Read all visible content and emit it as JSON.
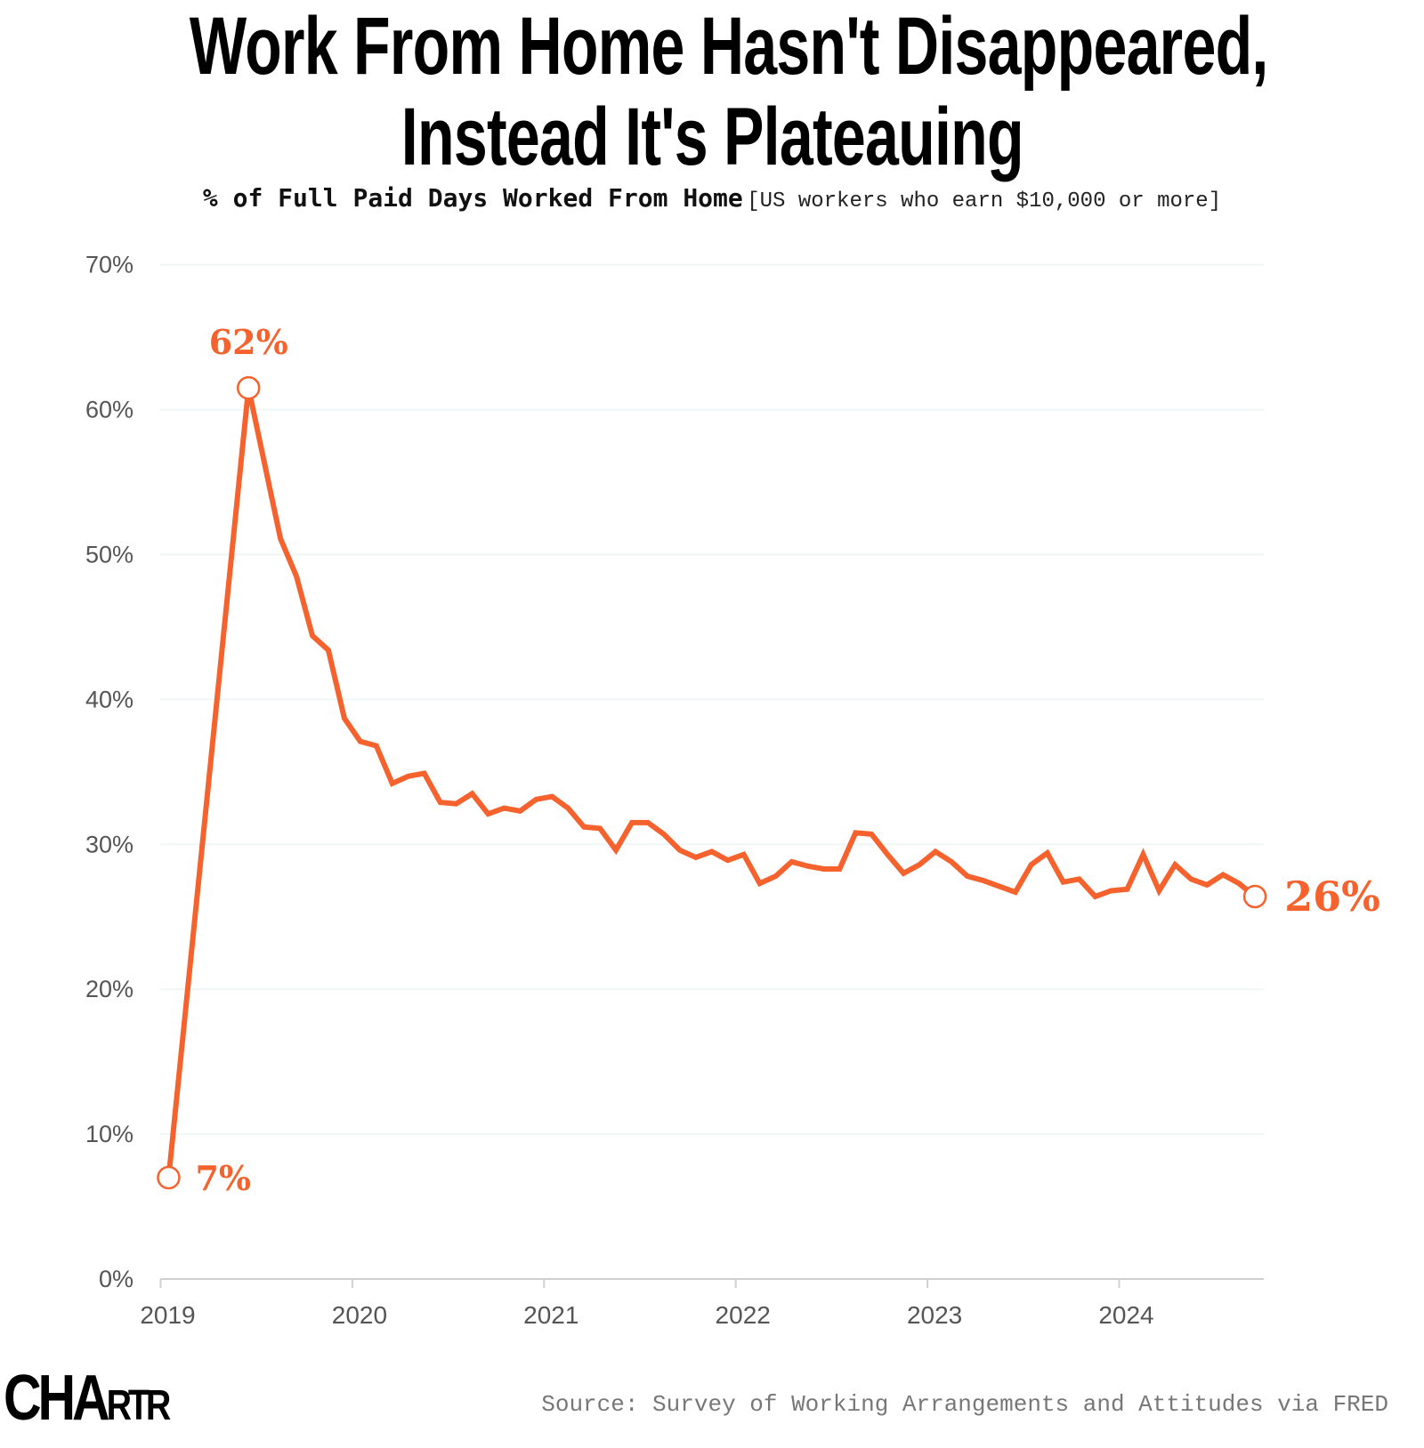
{
  "title_line1": "Work From Home Hasn't Disappeared,",
  "title_line2": "Instead It's Plateauing",
  "subtitle_main": "% of Full Paid Days Worked From Home",
  "subtitle_note": "[US workers who earn $10,000 or more]",
  "source": "Source: Survey of Working Arrangements and Attitudes via FRED",
  "logo_text": "CHARTR",
  "colors": {
    "line": "#f5622d",
    "grid": "#eef7f6",
    "axis": "#d0d0d0",
    "tick_label": "#555555"
  },
  "chart_data": {
    "type": "line",
    "title": "% of Full Paid Days Worked From Home",
    "xlabel": "",
    "ylabel": "",
    "ylim": [
      0,
      70
    ],
    "xlim": [
      "2019-01",
      "2024-09"
    ],
    "grid": true,
    "y_ticks": [
      "0%",
      "10%",
      "20%",
      "30%",
      "40%",
      "50%",
      "60%",
      "70%"
    ],
    "y_tick_values": [
      0,
      10,
      20,
      30,
      40,
      50,
      60,
      70
    ],
    "x_ticks": [
      "2019",
      "2020",
      "2021",
      "2022",
      "2023",
      "2024"
    ],
    "x": [
      "2019-01",
      "2019-06",
      "2019-08",
      "2019-09",
      "2019-10",
      "2019-11",
      "2019-12",
      "2020-01",
      "2020-02",
      "2020-03",
      "2020-04",
      "2020-05",
      "2020-06",
      "2020-07",
      "2020-08",
      "2020-09",
      "2020-10",
      "2020-11",
      "2020-12",
      "2021-01",
      "2021-02",
      "2021-03",
      "2021-04",
      "2021-05",
      "2021-06",
      "2021-07",
      "2021-08",
      "2021-09",
      "2021-10",
      "2021-11",
      "2021-12",
      "2022-01",
      "2022-02",
      "2022-03",
      "2022-04",
      "2022-05",
      "2022-06",
      "2022-07",
      "2022-08",
      "2022-09",
      "2022-10",
      "2022-11",
      "2022-12",
      "2023-01",
      "2023-02",
      "2023-03",
      "2023-04",
      "2023-05",
      "2023-06",
      "2023-07",
      "2023-08",
      "2023-09",
      "2023-10",
      "2023-11",
      "2023-12",
      "2024-01",
      "2024-02",
      "2024-03",
      "2024-04",
      "2024-05",
      "2024-06",
      "2024-07",
      "2024-08",
      "2024-09"
    ],
    "values": [
      7.0,
      61.5,
      51.1,
      48.5,
      44.4,
      43.4,
      38.7,
      37.1,
      36.8,
      34.2,
      34.7,
      34.9,
      32.9,
      32.8,
      33.5,
      32.1,
      32.5,
      32.3,
      33.1,
      33.3,
      32.5,
      31.2,
      31.1,
      29.6,
      31.5,
      31.5,
      30.7,
      29.6,
      29.1,
      29.5,
      28.9,
      29.3,
      27.3,
      27.8,
      28.8,
      28.5,
      28.3,
      28.3,
      30.8,
      30.7,
      29.3,
      28.0,
      28.6,
      29.5,
      28.8,
      27.8,
      27.5,
      27.1,
      26.7,
      28.6,
      29.4,
      27.4,
      27.6,
      26.4,
      26.8,
      26.9,
      29.3,
      26.8,
      28.6,
      27.6,
      27.2,
      27.9,
      27.3,
      26.4
    ],
    "annotations": [
      {
        "x": "2019-01",
        "text": "7%"
      },
      {
        "x": "2019-06",
        "text": "62%"
      },
      {
        "x": "2024-09",
        "text": "26%"
      }
    ]
  }
}
